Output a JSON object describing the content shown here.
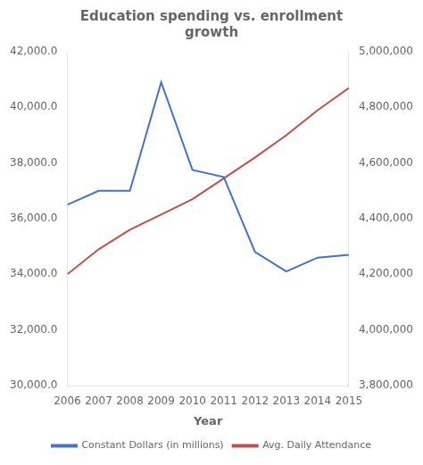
{
  "chart_data": {
    "type": "line",
    "title": "Education spending vs. enrollment\ngrowth",
    "xlabel": "Year",
    "x": [
      2006,
      2007,
      2008,
      2009,
      2010,
      2011,
      2012,
      2013,
      2014,
      2015
    ],
    "xlim": [
      2006,
      2015
    ],
    "xticks": [
      2006,
      2007,
      2008,
      2009,
      2010,
      2011,
      2012,
      2013,
      2014,
      2015
    ],
    "series": [
      {
        "name": "Constant Dollars (in millions)",
        "color": "#4472C4",
        "values": [
          36500,
          37000,
          37000,
          40900,
          37750,
          37500,
          34800,
          34100,
          34600,
          34700
        ]
      },
      {
        "name": "Avg. Daily Attendance",
        "color": "#C0504D",
        "axis": "y2",
        "values": [
          4200000,
          4290000,
          4360000,
          4415000,
          4470000,
          4545000,
          4620000,
          4700000,
          4790000,
          4870000
        ]
      }
    ],
    "ylim": [
      30000,
      42000
    ],
    "yticks": [
      {
        "value": 30000,
        "label": "30,000.0"
      },
      {
        "value": 32000,
        "label": "32,000.0"
      },
      {
        "value": 34000,
        "label": "34,000.0"
      },
      {
        "value": 36000,
        "label": "36,000.0"
      },
      {
        "value": 38000,
        "label": "38,000.0"
      },
      {
        "value": 40000,
        "label": "40,000.0"
      },
      {
        "value": 42000,
        "label": "42,000.0"
      }
    ],
    "y2lim": [
      3800000,
      5000000
    ],
    "y2ticks": [
      {
        "value": 3800000,
        "label": "3,800,000"
      },
      {
        "value": 4000000,
        "label": "4,000,000"
      },
      {
        "value": 4200000,
        "label": "4,200,000"
      },
      {
        "value": 4400000,
        "label": "4,400,000"
      },
      {
        "value": 4600000,
        "label": "4,600,000"
      },
      {
        "value": 4800000,
        "label": "4,800,000"
      },
      {
        "value": 5000000,
        "label": "5,000,000"
      }
    ],
    "grid": false,
    "legend": "bottom"
  }
}
